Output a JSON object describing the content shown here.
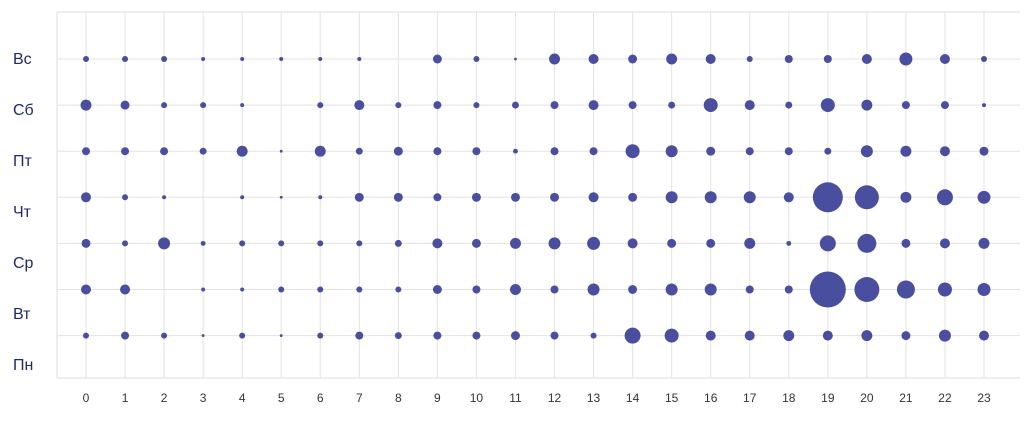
{
  "chart_data": {
    "type": "punchcard",
    "x": [
      0,
      1,
      2,
      3,
      4,
      5,
      6,
      7,
      8,
      9,
      10,
      11,
      12,
      13,
      14,
      15,
      16,
      17,
      18,
      19,
      20,
      21,
      22,
      23
    ],
    "xticks": [
      0,
      1,
      2,
      3,
      4,
      5,
      6,
      7,
      8,
      9,
      10,
      11,
      12,
      13,
      14,
      15,
      16,
      17,
      18,
      19,
      20,
      21,
      22,
      23
    ],
    "xlim": [
      0,
      23
    ],
    "color": "#4a4e9f",
    "grid": true,
    "series": [
      {
        "name": "Вс",
        "values": [
          9,
          9,
          9,
          4,
          4,
          4,
          4,
          4,
          0,
          20,
          9,
          2,
          30,
          25,
          20,
          30,
          25,
          9,
          16,
          16,
          25,
          42,
          25,
          9
        ]
      },
      {
        "name": "Сб",
        "values": [
          30,
          20,
          9,
          9,
          4,
          0,
          9,
          25,
          9,
          16,
          9,
          12,
          16,
          25,
          16,
          12,
          49,
          25,
          12,
          49,
          30,
          16,
          16,
          4
        ]
      },
      {
        "name": "Пт",
        "values": [
          16,
          16,
          16,
          12,
          30,
          2,
          30,
          12,
          20,
          16,
          16,
          6,
          16,
          16,
          49,
          36,
          20,
          16,
          16,
          12,
          36,
          30,
          25,
          20
        ]
      },
      {
        "name": "Чт",
        "values": [
          25,
          9,
          4,
          0,
          4,
          2,
          4,
          20,
          20,
          16,
          20,
          20,
          20,
          25,
          20,
          36,
          36,
          36,
          25,
          225,
          144,
          30,
          64,
          42
        ]
      },
      {
        "name": "Ср",
        "values": [
          20,
          9,
          36,
          6,
          9,
          9,
          9,
          9,
          12,
          25,
          20,
          30,
          36,
          42,
          25,
          20,
          20,
          30,
          6,
          64,
          90,
          20,
          25,
          30
        ]
      },
      {
        "name": "Вт",
        "values": [
          25,
          25,
          0,
          4,
          4,
          9,
          9,
          9,
          9,
          20,
          16,
          30,
          16,
          36,
          20,
          36,
          36,
          16,
          16,
          324,
          156,
          81,
          49,
          42
        ]
      },
      {
        "name": "Пн",
        "values": [
          9,
          16,
          9,
          2,
          9,
          2,
          9,
          16,
          12,
          16,
          16,
          20,
          16,
          9,
          64,
          49,
          25,
          25,
          30,
          25,
          30,
          20,
          36,
          25
        ]
      }
    ]
  }
}
